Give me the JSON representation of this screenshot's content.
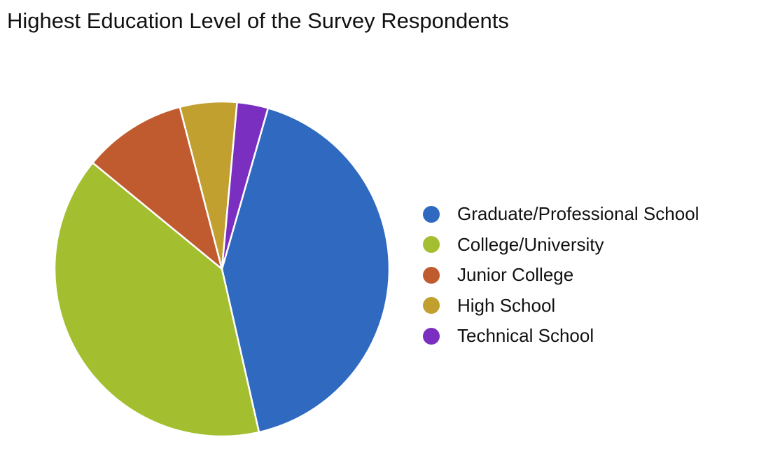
{
  "chart_data": {
    "type": "pie",
    "title": "Highest Education Level of the Survey Respondents",
    "legend_position": "right",
    "slices": [
      {
        "label": "Graduate/Professional School",
        "value": 42.0,
        "color": "#2F6AC0"
      },
      {
        "label": "College/University",
        "value": 39.5,
        "color": "#A3BF2F"
      },
      {
        "label": "Junior College",
        "value": 10.0,
        "color": "#C05A2F"
      },
      {
        "label": "High School",
        "value": 5.5,
        "color": "#C1A030"
      },
      {
        "label": "Technical School",
        "value": 3.0,
        "color": "#7A2FC0"
      }
    ]
  }
}
